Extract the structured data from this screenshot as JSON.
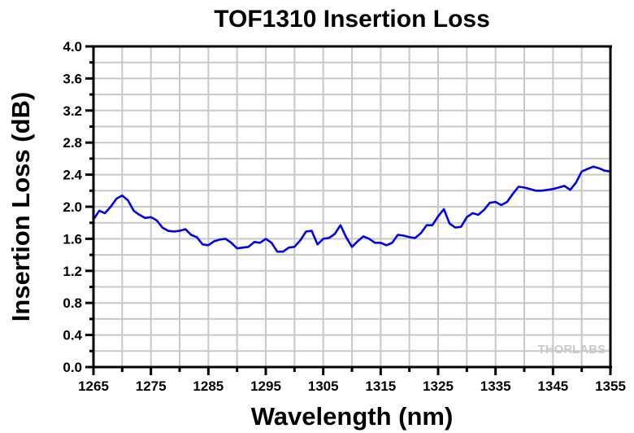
{
  "chart_data": {
    "type": "line",
    "title": "TOF1310 Insertion Loss",
    "xlabel": "Wavelength (nm)",
    "ylabel": "Insertion Loss (dB)",
    "xlim": [
      1265,
      1355
    ],
    "ylim": [
      0.0,
      4.0
    ],
    "xticks": [
      "1265",
      "1275",
      "1285",
      "1295",
      "1305",
      "1315",
      "1325",
      "1335",
      "1345",
      "1355"
    ],
    "yticks": [
      "0.0",
      "0.4",
      "0.8",
      "1.2",
      "1.6",
      "2.0",
      "2.4",
      "2.8",
      "3.2",
      "3.6",
      "4.0"
    ],
    "grid": true,
    "watermark": "THORLABS",
    "series": [
      {
        "name": "Insertion Loss",
        "color": "#0000ee",
        "x": [
          1265,
          1266,
          1267,
          1268,
          1269,
          1270,
          1271,
          1272,
          1273,
          1274,
          1275,
          1276,
          1277,
          1278,
          1279,
          1280,
          1281,
          1282,
          1283,
          1284,
          1285,
          1286,
          1287,
          1288,
          1289,
          1290,
          1291,
          1292,
          1293,
          1294,
          1295,
          1296,
          1297,
          1298,
          1299,
          1300,
          1301,
          1302,
          1303,
          1304,
          1305,
          1306,
          1307,
          1308,
          1309,
          1310,
          1311,
          1312,
          1313,
          1314,
          1315,
          1316,
          1317,
          1318,
          1319,
          1320,
          1321,
          1322,
          1323,
          1324,
          1325,
          1326,
          1327,
          1328,
          1329,
          1330,
          1331,
          1332,
          1333,
          1334,
          1335,
          1336,
          1337,
          1338,
          1339,
          1340,
          1341,
          1342,
          1343,
          1344,
          1345,
          1346,
          1347,
          1348,
          1349,
          1350,
          1351,
          1352,
          1353,
          1354,
          1355
        ],
        "y": [
          1.84,
          1.95,
          1.92,
          2.0,
          2.1,
          2.14,
          2.08,
          1.95,
          1.9,
          1.86,
          1.87,
          1.83,
          1.74,
          1.7,
          1.69,
          1.7,
          1.72,
          1.65,
          1.62,
          1.53,
          1.52,
          1.57,
          1.59,
          1.6,
          1.55,
          1.48,
          1.49,
          1.5,
          1.56,
          1.55,
          1.6,
          1.55,
          1.44,
          1.44,
          1.49,
          1.5,
          1.58,
          1.69,
          1.7,
          1.53,
          1.6,
          1.61,
          1.66,
          1.77,
          1.62,
          1.5,
          1.57,
          1.63,
          1.6,
          1.55,
          1.55,
          1.52,
          1.55,
          1.65,
          1.64,
          1.62,
          1.61,
          1.67,
          1.77,
          1.77,
          1.88,
          1.97,
          1.79,
          1.74,
          1.75,
          1.87,
          1.92,
          1.9,
          1.96,
          2.05,
          2.06,
          2.02,
          2.06,
          2.16,
          2.25,
          2.24,
          2.22,
          2.2,
          2.2,
          2.21,
          2.22,
          2.24,
          2.26,
          2.21,
          2.3,
          2.44,
          2.47,
          2.5,
          2.48,
          2.45,
          2.44
        ]
      }
    ]
  }
}
